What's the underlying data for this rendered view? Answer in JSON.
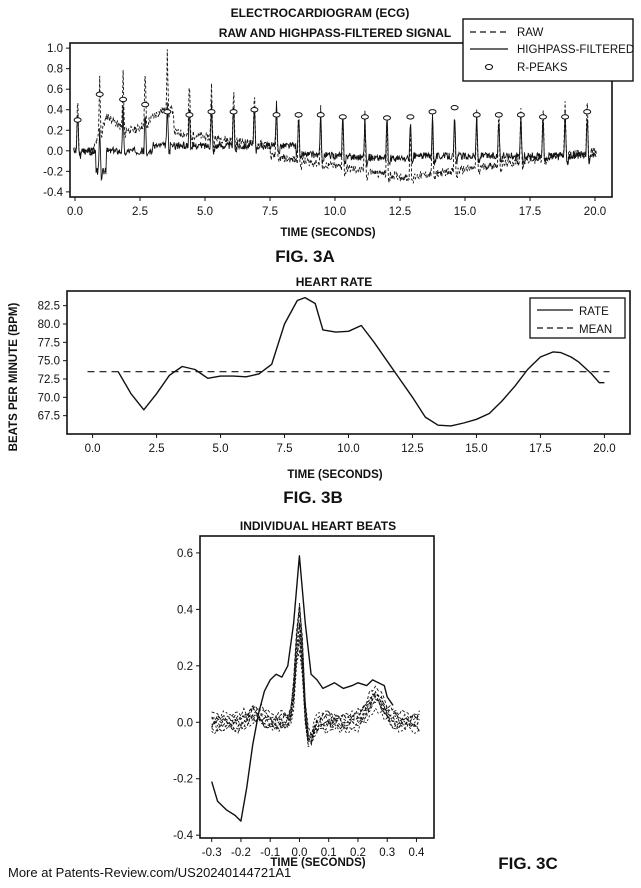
{
  "fig3a": {
    "fig_label": "FIG. 3A",
    "chart_data": {
      "type": "line",
      "title": "ELECTROCARDIOGRAM (ECG)",
      "subtitle": "RAW AND HIGHPASS-FILTERED SIGNAL",
      "xlabel": "TIME (SECONDS)",
      "ylabel": "",
      "xlim": [
        0,
        20
      ],
      "ylim": [
        -0.45,
        1.05
      ],
      "xticks": [
        "0.0",
        "2.5",
        "5.0",
        "7.5",
        "10.0",
        "12.5",
        "15.0",
        "17.5",
        "20.0"
      ],
      "yticks": [
        "1.0",
        "0.8",
        "0.6",
        "0.4",
        "0.2",
        "0.0",
        "-0.2",
        "-0.4"
      ],
      "legend": [
        "RAW",
        "HIGHPASS-FILTERED",
        "R-PEAKS"
      ],
      "legend_position": "top-right",
      "r_peak_times": [
        0.1,
        0.95,
        1.85,
        2.7,
        3.55,
        4.4,
        5.25,
        6.1,
        6.9,
        7.75,
        8.6,
        9.45,
        10.3,
        11.15,
        12.0,
        12.9,
        13.75,
        14.6,
        15.45,
        16.3,
        17.15,
        18.0,
        18.85,
        19.7
      ],
      "r_peak_values": [
        0.3,
        0.55,
        0.5,
        0.45,
        0.38,
        0.35,
        0.38,
        0.38,
        0.4,
        0.35,
        0.35,
        0.35,
        0.33,
        0.33,
        0.32,
        0.33,
        0.38,
        0.42,
        0.35,
        0.35,
        0.35,
        0.33,
        0.33,
        0.38
      ]
    }
  },
  "fig3b": {
    "fig_label": "FIG. 3B",
    "chart_data": {
      "type": "line",
      "title": "HEART RATE",
      "xlabel": "TIME (SECONDS)",
      "ylabel": "BEATS PER MINUTE (BPM)",
      "xlim": [
        -1,
        21
      ],
      "ylim": [
        65,
        84.5
      ],
      "xticks": [
        "0.0",
        "2.5",
        "5.0",
        "7.5",
        "10.0",
        "12.5",
        "15.0",
        "17.5",
        "20.0"
      ],
      "yticks": [
        "82.5",
        "80.0",
        "77.5",
        "75.0",
        "72.5",
        "70.0",
        "67.5"
      ],
      "legend": [
        "RATE",
        "MEAN"
      ],
      "legend_position": "top-right",
      "series": [
        {
          "name": "RATE",
          "x": [
            1.0,
            1.5,
            2.0,
            2.5,
            3.0,
            3.5,
            4.0,
            4.5,
            5.0,
            5.5,
            6.0,
            6.5,
            7.0,
            7.5,
            8.0,
            8.3,
            8.7,
            9.0,
            9.5,
            10.0,
            10.5,
            11.0,
            11.5,
            12.0,
            12.5,
            13.0,
            13.5,
            14.0,
            14.5,
            15.0,
            15.5,
            16.0,
            16.5,
            17.0,
            17.5,
            18.0,
            18.3,
            18.7,
            19.0,
            19.5,
            19.8,
            20.0
          ],
          "y": [
            73.5,
            70.5,
            68.3,
            70.5,
            73.0,
            74.2,
            73.8,
            72.6,
            72.9,
            72.9,
            72.8,
            73.2,
            74.5,
            80.0,
            83.2,
            83.6,
            82.8,
            79.2,
            78.9,
            79.0,
            79.8,
            77.5,
            75.0,
            72.5,
            70.0,
            67.3,
            66.2,
            66.1,
            66.5,
            67.0,
            67.8,
            69.5,
            71.5,
            73.8,
            75.5,
            76.2,
            76.1,
            75.5,
            74.8,
            73.2,
            72.0,
            72.0
          ]
        },
        {
          "name": "MEAN",
          "x": [
            -0.2,
            20.2
          ],
          "y": [
            73.5,
            73.5
          ]
        }
      ]
    }
  },
  "fig3c": {
    "fig_label": "FIG. 3C",
    "chart_data": {
      "type": "line",
      "title": "INDIVIDUAL HEART BEATS",
      "xlabel": "TIME (SECONDS)",
      "ylabel": "",
      "xlim": [
        -0.34,
        0.46
      ],
      "ylim": [
        -0.41,
        0.66
      ],
      "xticks": [
        "-0.3",
        "-0.2",
        "-0.1",
        "0.0",
        "0.1",
        "0.2",
        "0.3",
        "0.4"
      ],
      "yticks": [
        "0.6",
        "0.4",
        "0.2",
        "0.0",
        "-0.2",
        "-0.4"
      ],
      "series": [
        {
          "name": "",
          "x": [
            -0.3,
            -0.28,
            -0.25,
            -0.22,
            -0.2,
            -0.18,
            -0.16,
            -0.14,
            -0.12,
            -0.1,
            -0.08,
            -0.06,
            -0.04,
            -0.02,
            0.0,
            0.02,
            0.04,
            0.06,
            0.08,
            0.1,
            0.12,
            0.15,
            0.18,
            0.2,
            0.23,
            0.25,
            0.27,
            0.29,
            0.3,
            0.32
          ],
          "y": [
            -0.21,
            -0.28,
            -0.31,
            -0.33,
            -0.35,
            -0.23,
            -0.08,
            0.03,
            0.11,
            0.15,
            0.17,
            0.16,
            0.2,
            0.35,
            0.59,
            0.35,
            0.17,
            0.15,
            0.12,
            0.13,
            0.14,
            0.12,
            0.13,
            0.14,
            0.13,
            0.15,
            0.14,
            0.13,
            0.09,
            0.06
          ]
        }
      ]
    }
  },
  "footer": {
    "source": "More at Patents-Review.com/US20240144721A1"
  }
}
